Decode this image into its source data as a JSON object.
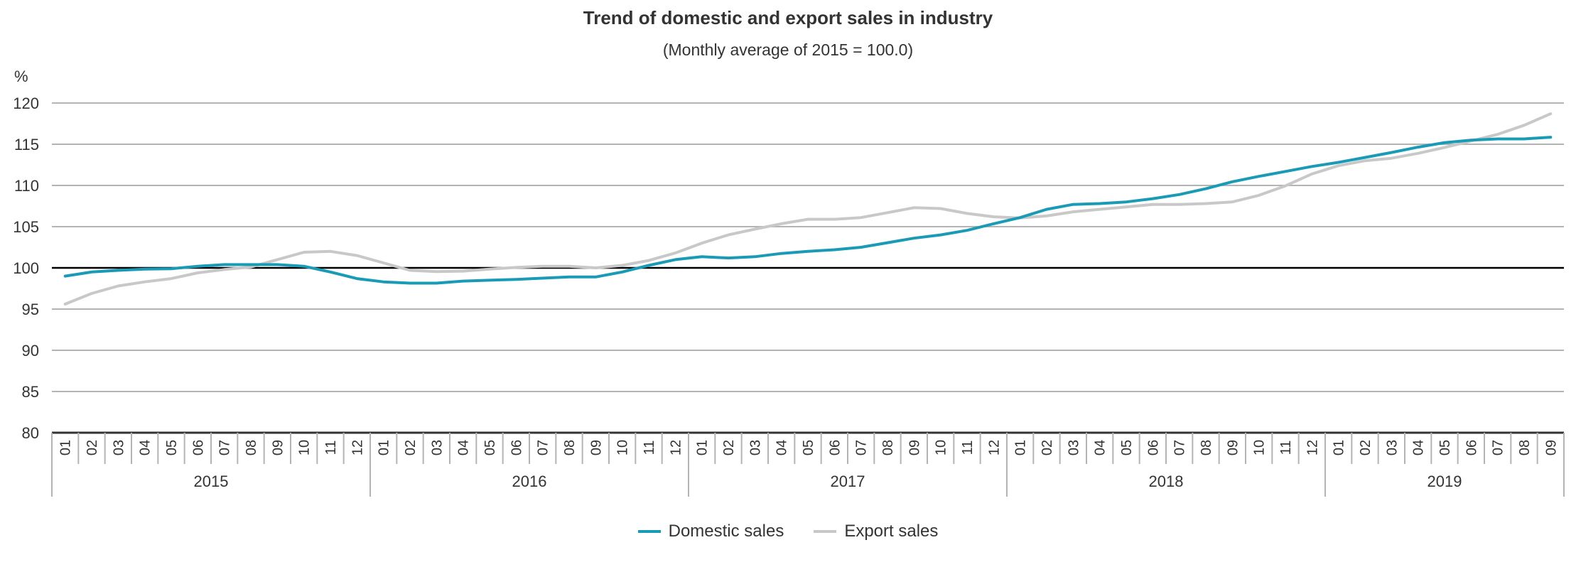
{
  "chart_data": {
    "type": "line",
    "title": "Trend of domestic and export sales in industry",
    "subtitle": "(Monthly average of 2015 = 100.0)",
    "ylabel": "%",
    "xlabel": "",
    "ylim": [
      80,
      120
    ],
    "yticks": [
      "80",
      "85",
      "90",
      "95",
      "100",
      "105",
      "110",
      "115",
      "120"
    ],
    "ytick_values": [
      80,
      85,
      90,
      95,
      100,
      105,
      110,
      115,
      120
    ],
    "reference_line": 100,
    "grid": true,
    "legend_position": "bottom-center",
    "years": [
      {
        "label": "2015",
        "months": 12
      },
      {
        "label": "2016",
        "months": 12
      },
      {
        "label": "2017",
        "months": 12
      },
      {
        "label": "2018",
        "months": 12
      },
      {
        "label": "2019",
        "months": 9
      }
    ],
    "x": [
      "01",
      "02",
      "03",
      "04",
      "05",
      "06",
      "07",
      "08",
      "09",
      "10",
      "11",
      "12",
      "01",
      "02",
      "03",
      "04",
      "05",
      "06",
      "07",
      "08",
      "09",
      "10",
      "11",
      "12",
      "01",
      "02",
      "03",
      "04",
      "05",
      "06",
      "07",
      "08",
      "09",
      "10",
      "11",
      "12",
      "01",
      "02",
      "03",
      "04",
      "05",
      "06",
      "07",
      "08",
      "09",
      "10",
      "11",
      "12",
      "01",
      "02",
      "03",
      "04",
      "05",
      "06",
      "07",
      "08",
      "09"
    ],
    "series": [
      {
        "name": "Domestic sales",
        "color": "#1a9bb5",
        "values": [
          99.0,
          99.5,
          99.7,
          99.85,
          99.9,
          100.2,
          100.4,
          100.4,
          100.4,
          100.2,
          99.5,
          98.7,
          98.3,
          98.15,
          98.15,
          98.4,
          98.5,
          98.6,
          98.75,
          98.9,
          98.9,
          99.5,
          100.3,
          101.0,
          101.35,
          101.2,
          101.35,
          101.75,
          102.0,
          102.2,
          102.5,
          103.05,
          103.6,
          104.0,
          104.55,
          105.35,
          106.1,
          107.1,
          107.7,
          107.8,
          108.0,
          108.4,
          108.9,
          109.6,
          110.45,
          111.1,
          111.7,
          112.3,
          112.8,
          113.4,
          114.0,
          114.65,
          115.2,
          115.5,
          115.65,
          115.65,
          115.85
        ]
      },
      {
        "name": "Export sales",
        "color": "#c8c8c8",
        "values": [
          95.6,
          96.9,
          97.8,
          98.3,
          98.7,
          99.4,
          99.8,
          100.1,
          101.0,
          101.9,
          102.0,
          101.5,
          100.6,
          99.7,
          99.55,
          99.6,
          99.85,
          100.05,
          100.2,
          100.2,
          100.0,
          100.3,
          100.9,
          101.8,
          103.0,
          104.0,
          104.7,
          105.35,
          105.9,
          105.9,
          106.1,
          106.7,
          107.3,
          107.2,
          106.6,
          106.2,
          106.05,
          106.3,
          106.8,
          107.1,
          107.4,
          107.7,
          107.7,
          107.8,
          108.0,
          108.8,
          109.95,
          111.4,
          112.4,
          113.0,
          113.3,
          113.9,
          114.6,
          115.4,
          116.2,
          117.3,
          118.7
        ]
      }
    ]
  },
  "colors": {
    "grid": "#b4b4b4",
    "reference_line": "#000000",
    "axis": "#333333",
    "tick_separator": "#b4b4b4"
  }
}
